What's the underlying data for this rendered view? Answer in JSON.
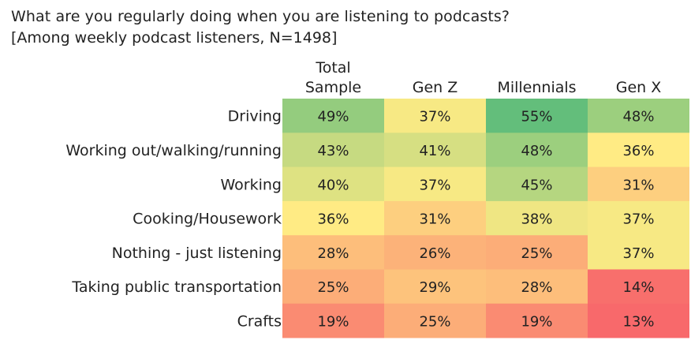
{
  "chart_data": {
    "type": "heatmap",
    "title": "What are you regularly doing when you are listening to podcasts?",
    "subtitle": "[Among weekly podcast listeners, N=1498]",
    "columns": [
      [
        "Total",
        "Sample"
      ],
      [
        "Gen Z"
      ],
      [
        "Millennials"
      ],
      [
        "Gen X"
      ]
    ],
    "rows": [
      "Driving",
      "Working out/walking/running",
      "Working",
      "Cooking/Housework",
      "Nothing - just listening",
      "Taking public transportation",
      "Crafts"
    ],
    "values": [
      [
        49,
        37,
        55,
        48
      ],
      [
        43,
        41,
        48,
        36
      ],
      [
        40,
        37,
        45,
        31
      ],
      [
        36,
        31,
        38,
        37
      ],
      [
        28,
        26,
        25,
        37
      ],
      [
        25,
        29,
        28,
        14
      ],
      [
        19,
        25,
        19,
        13
      ]
    ],
    "value_suffix": "%",
    "color_scale": {
      "low": "#f8696b",
      "mid": "#ffeb84",
      "high": "#63be7b"
    }
  }
}
